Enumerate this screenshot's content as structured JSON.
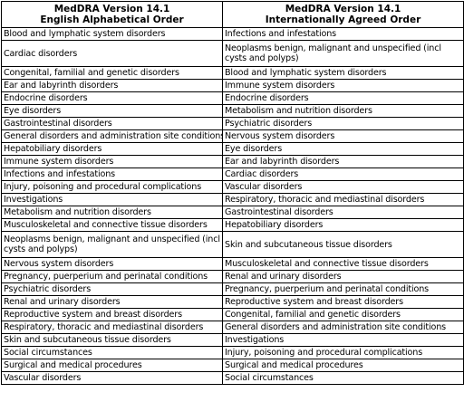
{
  "header": {
    "col1": {
      "line1": "MedDRA Version 14.1",
      "line2": "English Alphabetical Order"
    },
    "col2": {
      "line1": "MedDRA Version 14.1",
      "line2": "Internationally Agreed Order"
    }
  },
  "rows": [
    {
      "alpha": "Blood and lymphatic system disorders",
      "intl": "Infections and infestations"
    },
    {
      "alpha": "Cardiac disorders",
      "intl": "Neoplasms benign, malignant and unspecified (incl cysts and polyps)"
    },
    {
      "alpha": "Congenital, familial and genetic disorders",
      "intl": "Blood and lymphatic system disorders"
    },
    {
      "alpha": "Ear and labyrinth disorders",
      "intl": "Immune system disorders"
    },
    {
      "alpha": "Endocrine disorders",
      "intl": "Endocrine disorders"
    },
    {
      "alpha": "Eye disorders",
      "intl": "Metabolism and nutrition disorders"
    },
    {
      "alpha": "Gastrointestinal disorders",
      "intl": "Psychiatric disorders"
    },
    {
      "alpha": "General disorders and administration site conditions",
      "intl": "Nervous system disorders"
    },
    {
      "alpha": "Hepatobiliary disorders",
      "intl": "Eye disorders"
    },
    {
      "alpha": "Immune system disorders",
      "intl": "Ear and labyrinth disorders"
    },
    {
      "alpha": "Infections and infestations",
      "intl": "Cardiac disorders"
    },
    {
      "alpha": "Injury, poisoning and procedural complications",
      "intl": "Vascular disorders"
    },
    {
      "alpha": "Investigations",
      "intl": "Respiratory, thoracic and mediastinal disorders"
    },
    {
      "alpha": "Metabolism and nutrition disorders",
      "intl": "Gastrointestinal disorders"
    },
    {
      "alpha": "Musculoskeletal and connective tissue disorders",
      "intl": "Hepatobiliary disorders"
    },
    {
      "alpha": "Neoplasms benign, malignant and unspecified (incl cysts and polyps)",
      "intl": "Skin and subcutaneous tissue disorders"
    },
    {
      "alpha": "Nervous system disorders",
      "intl": "Musculoskeletal and connective tissue disorders"
    },
    {
      "alpha": "Pregnancy, puerperium and perinatal conditions",
      "intl": "Renal and urinary disorders"
    },
    {
      "alpha": "Psychiatric disorders",
      "intl": "Pregnancy, puerperium and perinatal conditions"
    },
    {
      "alpha": "Renal and urinary disorders",
      "intl": "Reproductive system and breast disorders"
    },
    {
      "alpha": "Reproductive system and breast disorders",
      "intl": "Congenital, familial and genetic disorders"
    },
    {
      "alpha": "Respiratory, thoracic and mediastinal disorders",
      "intl": "General disorders and administration site conditions"
    },
    {
      "alpha": "Skin and subcutaneous tissue disorders",
      "intl": "Investigations"
    },
    {
      "alpha": "Social circumstances",
      "intl": "Injury, poisoning and procedural complications"
    },
    {
      "alpha": "Surgical and medical procedures",
      "intl": "Surgical and medical procedures"
    },
    {
      "alpha": "Vascular disorders",
      "intl": "Social circumstances"
    }
  ]
}
